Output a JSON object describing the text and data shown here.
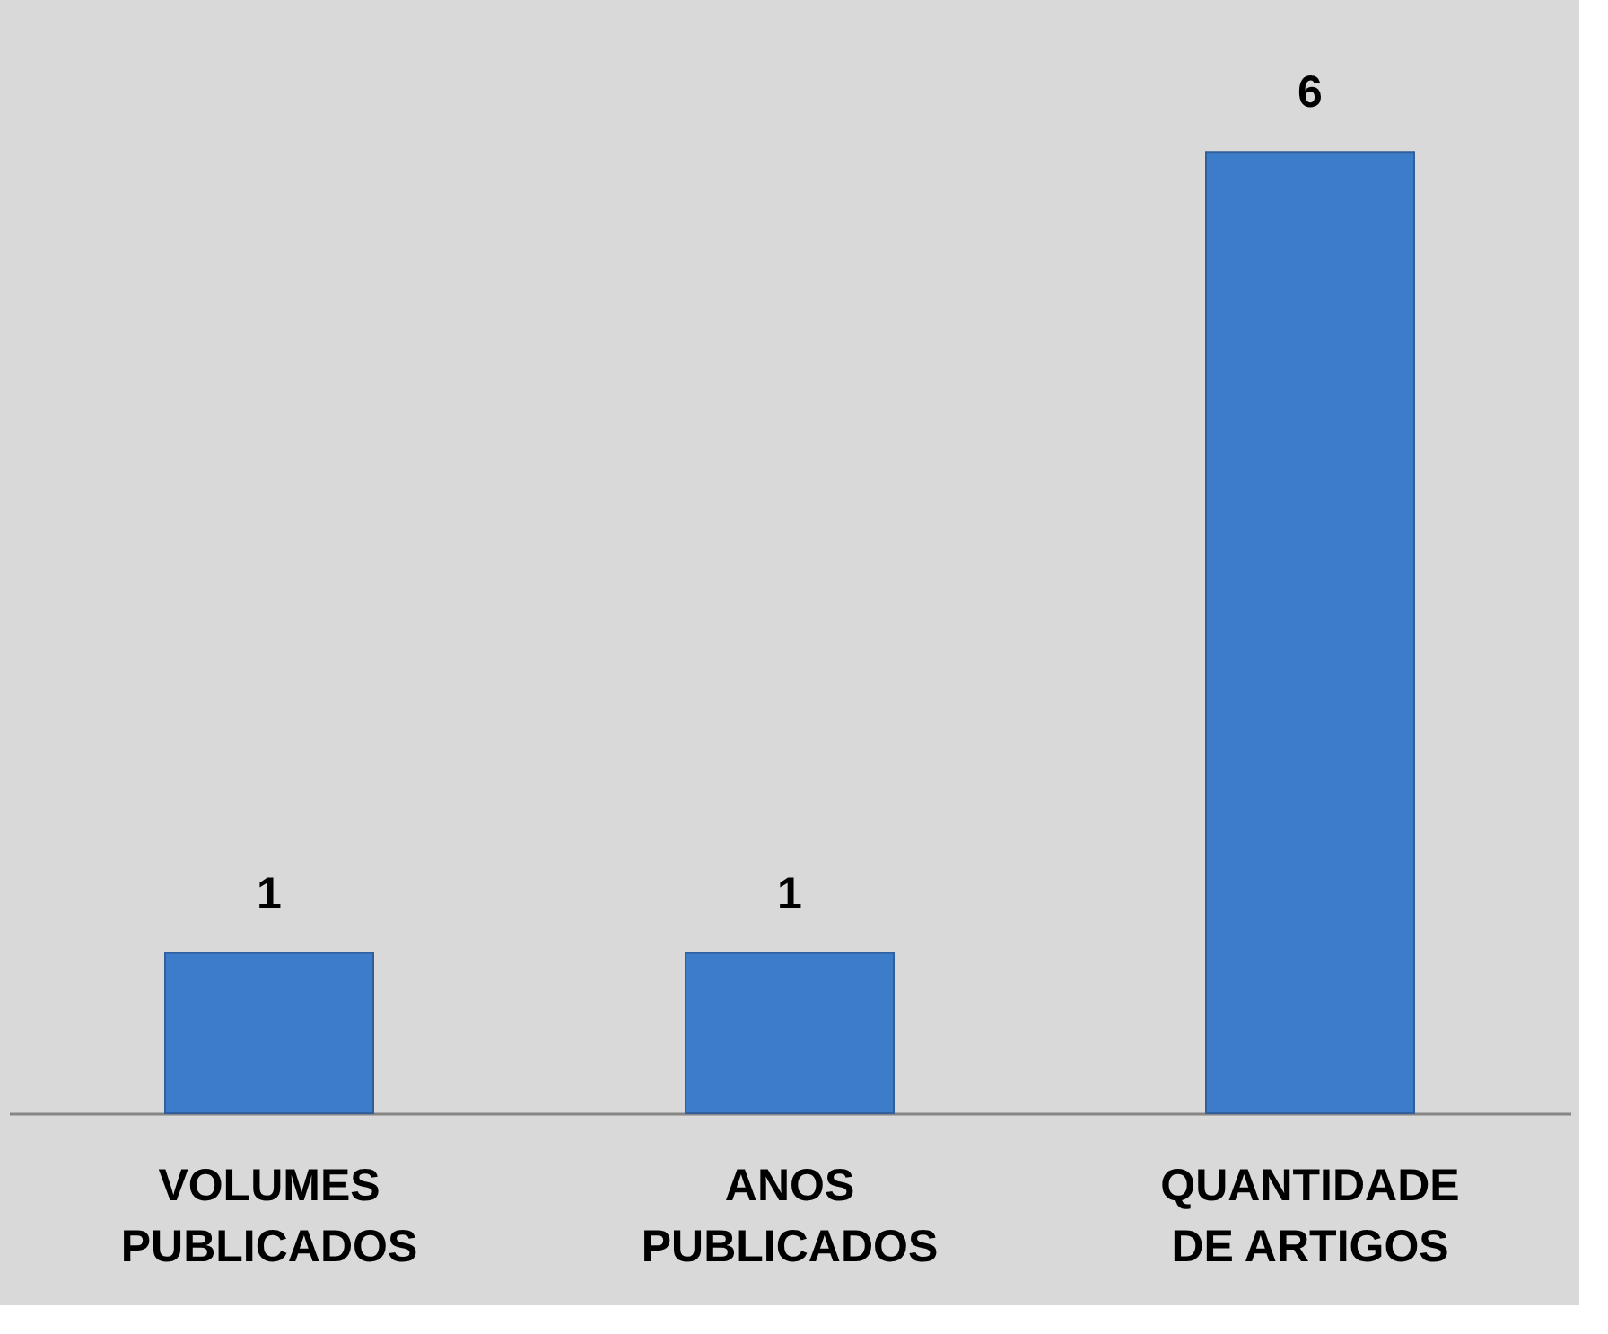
{
  "chart_data": {
    "type": "bar",
    "categories": [
      "VOLUMES PUBLICADOS",
      "ANOS PUBLICADOS",
      "QUANTIDADE DE ARTIGOS"
    ],
    "values": [
      1,
      1,
      6
    ],
    "color": "#3d7cc9",
    "data_labels": true
  }
}
